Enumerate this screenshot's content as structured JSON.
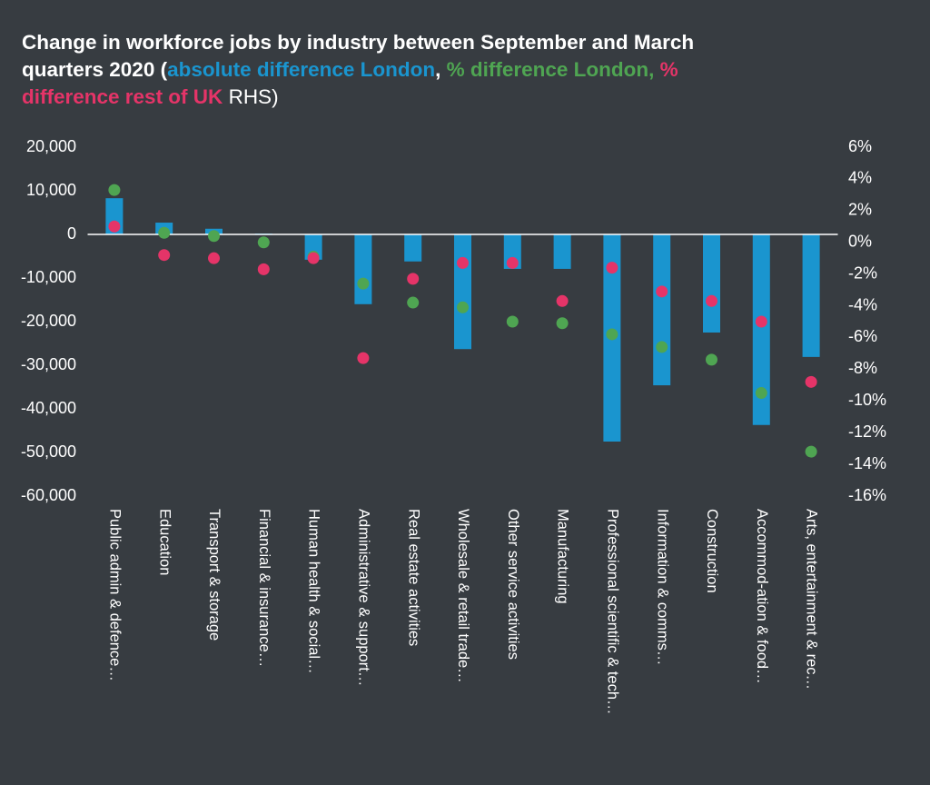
{
  "chart_data": {
    "type": "bar",
    "title_segments": [
      {
        "text": "Change in workforce jobs by industry between September and March quarters 2020 (",
        "color": "#ffffff"
      },
      {
        "text": "absolute difference London",
        "color": "#1a95cf"
      },
      {
        "text": ", ",
        "color": "#ffffff"
      },
      {
        "text": "% difference London,",
        "color": "#4fa552"
      },
      {
        "text": " % difference rest of UK",
        "color": "#e53468"
      },
      {
        "text": " RHS)",
        "color": "#ffffff",
        "weight": "normal"
      }
    ],
    "categories": [
      "Public admin & defence…",
      "Education",
      "Transport & storage",
      "Financial & insurance…",
      "Human health & social…",
      "Administrative & support…",
      "Real estate activities",
      "Wholesale & retail trade…",
      "Other service activities",
      "Manufacturing",
      "Professional scientific & tech…",
      "Information & comms…",
      "Construction",
      "Accommod-ation & food…",
      "Arts, entertainment & rec…"
    ],
    "series": [
      {
        "name": "absolute difference London",
        "type": "bar",
        "color": "#1a95cf",
        "axis": "y",
        "values": [
          8300,
          2700,
          1300,
          200,
          -5800,
          -16000,
          -6200,
          -26300,
          -7900,
          -7900,
          -47500,
          -34600,
          -22500,
          -43700,
          -28100
        ]
      },
      {
        "name": "% difference London",
        "type": "scatter",
        "color": "#4fa552",
        "axis": "y2",
        "values": [
          3.3,
          0.6,
          0.4,
          0,
          -0.9,
          -2.6,
          -3.8,
          -4.1,
          -5.0,
          -5.1,
          -5.8,
          -6.6,
          -7.4,
          -9.5,
          -13.2
        ]
      },
      {
        "name": "% difference rest of UK",
        "type": "scatter",
        "color": "#e53468",
        "axis": "y2",
        "values": [
          1.0,
          -0.8,
          -1.0,
          -1.7,
          -1.0,
          -7.3,
          -2.3,
          -1.3,
          -1.3,
          -3.7,
          -1.6,
          -3.1,
          -3.7,
          -5.0,
          -8.8
        ]
      }
    ],
    "ylim": [
      -60000,
      20000
    ],
    "yticks": [
      {
        "value": -60000,
        "label": "-60,000"
      },
      {
        "value": -50000,
        "label": "-50,000"
      },
      {
        "value": -40000,
        "label": "-40,000"
      },
      {
        "value": -30000,
        "label": "-30,000"
      },
      {
        "value": -20000,
        "label": "-20,000"
      },
      {
        "value": -10000,
        "label": "-10,000"
      },
      0,
      {
        "value": 10000,
        "label": "10,000"
      },
      {
        "value": 20000,
        "label": "20,000"
      }
    ],
    "y2lim": [
      -16,
      6
    ],
    "y2ticks": [
      {
        "value": -16,
        "label": "-16%"
      },
      {
        "value": -14,
        "label": "-14%"
      },
      {
        "value": -12,
        "label": "-12%"
      },
      {
        "value": -10,
        "label": "-10%"
      },
      {
        "value": -8,
        "label": "-8%"
      },
      {
        "value": -6,
        "label": "-6%"
      },
      {
        "value": -4,
        "label": "-4%"
      },
      {
        "value": -2,
        "label": "-2%"
      },
      {
        "value": 0,
        "label": "0%"
      },
      {
        "value": 2,
        "label": "2%"
      },
      {
        "value": 4,
        "label": "4%"
      },
      {
        "value": 6,
        "label": "6%"
      }
    ]
  }
}
